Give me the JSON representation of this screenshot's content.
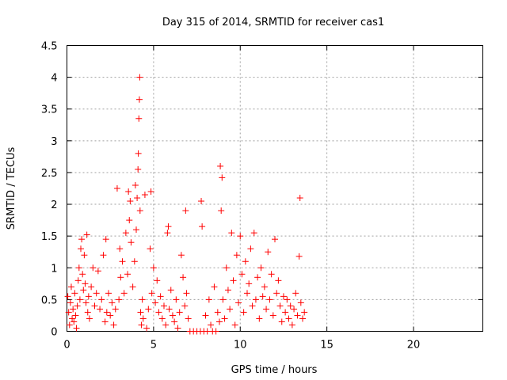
{
  "chart_data": {
    "type": "scatter",
    "title": "Day 315 of 2014, SRMTID for receiver cas1",
    "xlabel": "GPS time / hours",
    "ylabel": "SRMTID / TECUs",
    "xlim": [
      0,
      24
    ],
    "ylim": [
      0,
      4.5
    ],
    "xticks": [
      0,
      5,
      10,
      15,
      20
    ],
    "xtick_labels": [
      "0",
      "5",
      "10",
      "15",
      "20"
    ],
    "yticks": [
      0,
      0.5,
      1,
      1.5,
      2,
      2.5,
      3,
      3.5,
      4,
      4.5
    ],
    "ytick_labels": [
      "0",
      "0.5",
      "1",
      "1.5",
      "2",
      "2.5",
      "3",
      "3.5",
      "4",
      "4.5"
    ],
    "grid": true,
    "marker": "+",
    "series": [
      {
        "name": "SRMTID",
        "color": "#ff0000",
        "points": [
          [
            0.05,
            0.55
          ],
          [
            0.1,
            0.3
          ],
          [
            0.15,
            0.1
          ],
          [
            0.2,
            0.45
          ],
          [
            0.25,
            0.7
          ],
          [
            0.3,
            0.2
          ],
          [
            0.35,
            0.35
          ],
          [
            0.4,
            0.15
          ],
          [
            0.45,
            0.6
          ],
          [
            0.5,
            0.25
          ],
          [
            0.55,
            0.05
          ],
          [
            0.6,
            0.4
          ],
          [
            0.65,
            0.8
          ],
          [
            0.7,
            1.0
          ],
          [
            0.75,
            0.5
          ],
          [
            0.8,
            1.3
          ],
          [
            0.85,
            1.45
          ],
          [
            0.9,
            0.9
          ],
          [
            0.95,
            0.65
          ],
          [
            1.0,
            1.2
          ],
          [
            1.05,
            0.75
          ],
          [
            1.1,
            0.45
          ],
          [
            1.15,
            1.52
          ],
          [
            1.2,
            0.3
          ],
          [
            1.25,
            0.55
          ],
          [
            1.3,
            0.2
          ],
          [
            1.4,
            0.7
          ],
          [
            1.5,
            1.0
          ],
          [
            1.6,
            0.4
          ],
          [
            1.7,
            0.6
          ],
          [
            1.8,
            0.95
          ],
          [
            1.9,
            0.35
          ],
          [
            2.0,
            0.5
          ],
          [
            2.1,
            1.2
          ],
          [
            2.2,
            0.15
          ],
          [
            2.25,
            1.45
          ],
          [
            2.3,
            0.3
          ],
          [
            2.4,
            0.6
          ],
          [
            2.5,
            0.25
          ],
          [
            2.6,
            0.45
          ],
          [
            2.7,
            0.1
          ],
          [
            2.8,
            0.35
          ],
          [
            2.9,
            2.25
          ],
          [
            3.0,
            0.5
          ],
          [
            3.05,
            1.3
          ],
          [
            3.1,
            0.85
          ],
          [
            3.2,
            1.1
          ],
          [
            3.3,
            0.6
          ],
          [
            3.4,
            1.55
          ],
          [
            3.5,
            0.9
          ],
          [
            3.55,
            2.2
          ],
          [
            3.6,
            1.75
          ],
          [
            3.65,
            2.05
          ],
          [
            3.7,
            1.4
          ],
          [
            3.8,
            0.7
          ],
          [
            3.9,
            1.1
          ],
          [
            3.95,
            2.3
          ],
          [
            4.0,
            1.6
          ],
          [
            4.05,
            2.1
          ],
          [
            4.1,
            2.55
          ],
          [
            4.12,
            2.8
          ],
          [
            4.15,
            3.35
          ],
          [
            4.18,
            3.65
          ],
          [
            4.2,
            4.0
          ],
          [
            4.22,
            1.9
          ],
          [
            4.25,
            0.3
          ],
          [
            4.3,
            0.1
          ],
          [
            4.35,
            0.5
          ],
          [
            4.4,
            0.2
          ],
          [
            4.5,
            2.15
          ],
          [
            4.6,
            0.05
          ],
          [
            4.7,
            0.35
          ],
          [
            4.8,
            1.3
          ],
          [
            4.85,
            2.2
          ],
          [
            4.9,
            0.6
          ],
          [
            5.0,
            1.0
          ],
          [
            5.1,
            0.45
          ],
          [
            5.2,
            0.8
          ],
          [
            5.3,
            0.3
          ],
          [
            5.4,
            0.55
          ],
          [
            5.5,
            0.2
          ],
          [
            5.6,
            0.4
          ],
          [
            5.7,
            0.1
          ],
          [
            5.8,
            1.55
          ],
          [
            5.85,
            1.65
          ],
          [
            5.9,
            0.35
          ],
          [
            6.0,
            0.65
          ],
          [
            6.1,
            0.25
          ],
          [
            6.2,
            0.15
          ],
          [
            6.3,
            0.5
          ],
          [
            6.4,
            0.05
          ],
          [
            6.5,
            0.3
          ],
          [
            6.6,
            1.2
          ],
          [
            6.7,
            0.85
          ],
          [
            6.8,
            0.4
          ],
          [
            6.85,
            1.9
          ],
          [
            6.9,
            0.6
          ],
          [
            7.0,
            0.2
          ],
          [
            7.1,
            0.0
          ],
          [
            7.3,
            0.0
          ],
          [
            7.5,
            0.0
          ],
          [
            7.7,
            0.0
          ],
          [
            7.75,
            2.05
          ],
          [
            7.8,
            1.65
          ],
          [
            7.9,
            0.0
          ],
          [
            8.0,
            0.25
          ],
          [
            8.1,
            0.0
          ],
          [
            8.2,
            0.5
          ],
          [
            8.3,
            0.1
          ],
          [
            8.4,
            0.0
          ],
          [
            8.5,
            0.7
          ],
          [
            8.6,
            0.0
          ],
          [
            8.7,
            0.3
          ],
          [
            8.8,
            0.15
          ],
          [
            8.85,
            2.6
          ],
          [
            8.9,
            1.9
          ],
          [
            8.95,
            2.42
          ],
          [
            9.0,
            0.5
          ],
          [
            9.1,
            0.2
          ],
          [
            9.2,
            1.0
          ],
          [
            9.3,
            0.65
          ],
          [
            9.4,
            0.35
          ],
          [
            9.5,
            1.55
          ],
          [
            9.6,
            0.8
          ],
          [
            9.7,
            0.1
          ],
          [
            9.8,
            1.2
          ],
          [
            9.9,
            0.45
          ],
          [
            10.0,
            1.5
          ],
          [
            10.1,
            0.9
          ],
          [
            10.2,
            0.3
          ],
          [
            10.3,
            1.1
          ],
          [
            10.4,
            0.6
          ],
          [
            10.5,
            0.75
          ],
          [
            10.6,
            1.3
          ],
          [
            10.7,
            0.4
          ],
          [
            10.8,
            1.55
          ],
          [
            10.9,
            0.5
          ],
          [
            11.0,
            0.85
          ],
          [
            11.1,
            0.2
          ],
          [
            11.2,
            1.0
          ],
          [
            11.3,
            0.55
          ],
          [
            11.4,
            0.7
          ],
          [
            11.5,
            0.35
          ],
          [
            11.6,
            1.25
          ],
          [
            11.7,
            0.5
          ],
          [
            11.8,
            0.9
          ],
          [
            11.9,
            0.25
          ],
          [
            12.0,
            1.45
          ],
          [
            12.1,
            0.6
          ],
          [
            12.2,
            0.8
          ],
          [
            12.3,
            0.4
          ],
          [
            12.4,
            0.15
          ],
          [
            12.5,
            0.55
          ],
          [
            12.6,
            0.3
          ],
          [
            12.7,
            0.5
          ],
          [
            12.8,
            0.2
          ],
          [
            12.9,
            0.4
          ],
          [
            13.0,
            0.1
          ],
          [
            13.1,
            0.35
          ],
          [
            13.2,
            0.6
          ],
          [
            13.3,
            0.25
          ],
          [
            13.4,
            1.18
          ],
          [
            13.45,
            2.1
          ],
          [
            13.5,
            0.45
          ],
          [
            13.6,
            0.2
          ],
          [
            13.7,
            0.3
          ]
        ]
      }
    ]
  }
}
